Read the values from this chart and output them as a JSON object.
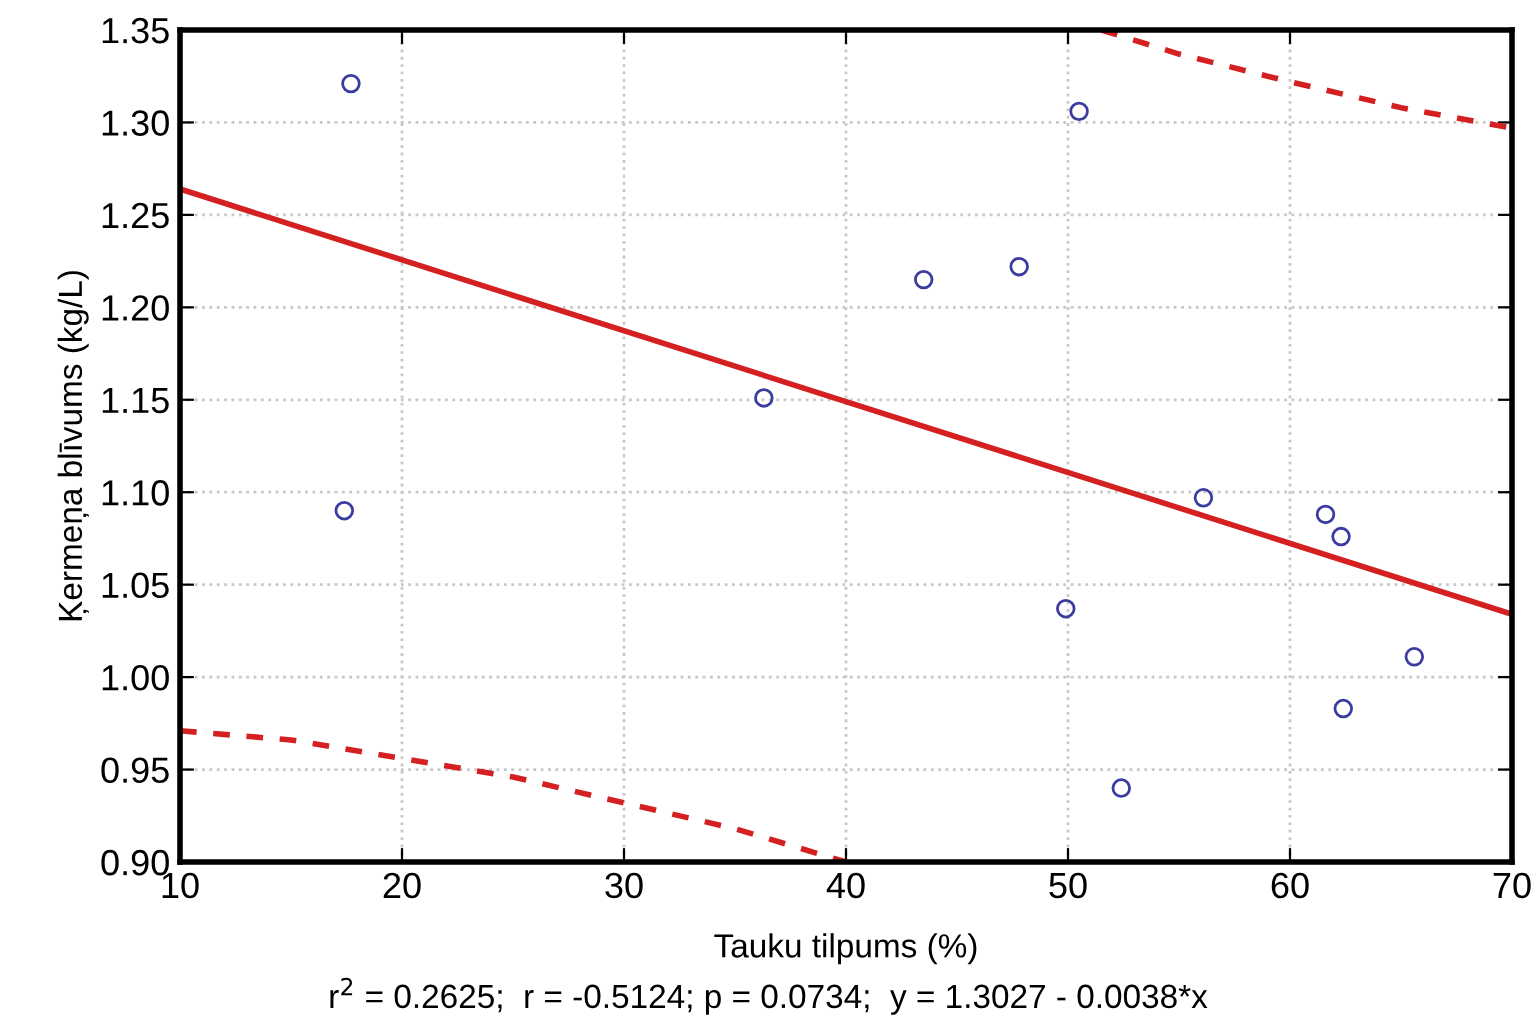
{
  "chart_data": {
    "type": "scatter",
    "xlabel": "Tauku tilpums (%)",
    "ylabel": "Ķermeņa blīvums (kg/L)",
    "annotations": [
      "r$^{2}$ = 0.2625;  r = -0.5124; p = 0.0734;  y = 1.3027 - 0.0038*x"
    ],
    "xlim": [
      10,
      70
    ],
    "xticks": [
      10,
      20,
      30,
      40,
      50,
      60,
      70
    ],
    "ylim": [
      0.9,
      1.35
    ],
    "yticks": [
      {
        "value": 0.9,
        "label": "0.90"
      },
      0.95,
      {
        "value": 1.0,
        "label": "1.00"
      },
      1.05,
      {
        "value": 1.1,
        "label": "1.10"
      },
      1.15,
      {
        "value": 1.2,
        "label": "1.20"
      },
      1.25,
      {
        "value": 1.3,
        "label": "1.30"
      },
      1.35
    ],
    "grid": true,
    "series": [
      {
        "color": "#3c3ca0",
        "marker": "circle",
        "x": [
          17.7,
          17.4,
          36.3,
          43.5,
          47.8,
          50.5,
          49.9,
          52.4,
          56.1,
          61.6,
          62.3,
          62.4,
          65.6
        ],
        "values": [
          1.321,
          1.09,
          1.151,
          1.215,
          1.222,
          1.306,
          1.037,
          0.94,
          1.097,
          1.088,
          1.076,
          0.983,
          1.011
        ]
      },
      {
        "type": "line",
        "color": "#d42020",
        "line_style": "solid",
        "x": [
          10,
          70
        ],
        "values": [
          1.264,
          1.034
        ]
      },
      {
        "type": "line",
        "color": "#d42020",
        "line_style": "dashed",
        "x": [
          51.5,
          55,
          60,
          65,
          70
        ],
        "values": [
          1.35,
          1.337,
          1.322,
          1.308,
          1.297
        ]
      },
      {
        "type": "line",
        "color": "#d42020",
        "line_style": "dashed",
        "x": [
          10,
          15,
          20,
          25,
          30,
          35,
          40
        ],
        "values": [
          0.971,
          0.966,
          0.956,
          0.946,
          0.932,
          0.918,
          0.9
        ]
      }
    ]
  }
}
